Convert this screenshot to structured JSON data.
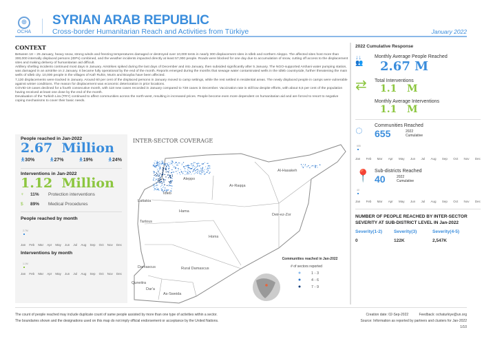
{
  "header": {
    "org": "OCHA",
    "title": "SYRIAN ARAB REPUBLIC",
    "subtitle": "Cross-border Humanitarian Reach and Activities from Türkiye",
    "date": "January 2022"
  },
  "context": {
    "heading": "CONTEXT",
    "paragraphs": [
      "Between 18 – 25 January, heavy snow, strong winds and freezing temperatures damaged or destroyed over 10,000 tents in nearly 300 displacement sites in Idleb and northern Aleppo. The affected sites host more than 300,000 internally displaced persons (IDPs) combined, and the weather incidents impacted directly at least 57,000 people. Roads were blocked for one day due to accumulation of snow, cutting off access to the displacement sites and making delivery of humanitarian aid difficult.",
      "Artillery shelling incidents continued most days in January. Airstrikes spiked during the last days of December and into January, then subsided significantly after 5 January. The NGO-supported Arshani water pumping station, was damaged in an airstrike on 2 January. It became fully operational by the end of the month. Reports emerged during the months that sewage water contaminated wells in the Idleb countryside, further threatening the main wells of Idleb city. 10,000 people in the villages of Kafr Ruhin, Murin and Boayba have been affected.",
      "7,130 displacements were tracked in January. Around 60 per cent of the displaced persons in January moved to camp settings, while the rest settled in residential areas. The newly displaced people in camps were vulnerable against winter conditions. The reason for displacement was economic deterioration in prior locations.",
      "COVID-19 cases declined for a fourth consecutive month, with 118 new cases recorded in January compared to 728 cases in December. Vaccination rate is still low despite efforts, with about 6,5 per cent of the population having received at least one dose by the end of the month.",
      "Devaluation of the Turkish Lira (TRY) continued to affect communities across the north-west, resulting in increased prices. People become even more dependent on humanitarian aid and are forced to resort to negative coping mechanisms to cover their basic needs."
    ]
  },
  "left": {
    "people_heading": "People reached in Jan-2022",
    "people_value": "2.67",
    "people_unit": "Million",
    "demographics": [
      "30%",
      "27%",
      "19%",
      "24%"
    ],
    "interventions_heading": "Interventions in Jan-2022",
    "interventions_value": "1.12",
    "interventions_unit": "Million",
    "breakdown": [
      {
        "pct": "11%",
        "label": "Protection interventions"
      },
      {
        "pct": "89%",
        "label": "Medical Procedures"
      }
    ],
    "people_month_heading": "People reached by month",
    "people_month_label": "2.7M",
    "interventions_month_heading": "Interventions by month",
    "interventions_month_label": "1.1M"
  },
  "months": [
    "Jan",
    "Feb",
    "Mar",
    "Apr",
    "May",
    "Jun",
    "Jul",
    "Aug",
    "Sep",
    "Oct",
    "Nov",
    "Dec"
  ],
  "map": {
    "title": "INTER-SECTOR COVERAGE",
    "places": [
      "Al-Hasakeh",
      "Aleppo",
      "Ar-Raqqa",
      "Idleb",
      "Lattakia",
      "Hama",
      "Deir-ez-Zor",
      "Tartous",
      "Homs",
      "Damascus",
      "Rural Damascus",
      "Quneitra",
      "Dar'a",
      "As-Sweida"
    ],
    "legend": {
      "title": "Communities reached in Jan-2022",
      "subtitle": "# of sectors reported",
      "items": [
        {
          "label": "1 - 3",
          "color": "#8cbcee"
        },
        {
          "label": "4 - 6",
          "color": "#2f74c8"
        },
        {
          "label": "7 - 9",
          "color": "#0d3a78"
        }
      ]
    }
  },
  "right": {
    "heading": "2022 Cumulative Response",
    "avg_people_label": "Monthly Average People Reached",
    "avg_people_value": "2.67 M",
    "total_int_label": "Total Interventions",
    "total_int_value": "1.1   M",
    "avg_int_label": "Monthly Average Interventions",
    "avg_int_value": "1.1   M",
    "communities_label": "Communities Reached",
    "communities_value": "655",
    "communities_note": "2022 Cumulative",
    "communities_chart_label": "655",
    "subdistricts_label": "Sub-districts Reached",
    "subdistricts_value": "40",
    "subdistricts_note": "2022 Cumulative",
    "subdistricts_chart_label": "40",
    "severity_heading": "NUMBER OF PEOPLE REACHED BY INTER-SECTOR SEVERITY AT SUB-DISTRICT LEVEL IN  Jan-2022",
    "severity": [
      {
        "label": "Severity(1-2)",
        "value": "0"
      },
      {
        "label": "Severity(3)",
        "value": "122K"
      },
      {
        "label": "Severity(4-5)",
        "value": "2,547K"
      }
    ]
  },
  "footer": {
    "note1": "The count of people reached may include duplicate count of same people assisted by more than one type of activities within a sector.",
    "note2": "The boundaries shown and the designations used on this map do not imply official endorsement or acceptance by the United Nations.",
    "created": "Creation date: 02-Sep-2022",
    "feedback": "Feedback: ochaturkiye@un.org",
    "source": "Source:  Information as reported by partners and clusters for Jan-2022",
    "page": "1/10"
  },
  "colors": {
    "blue": "#3a8ddc",
    "green": "#8cc63f"
  }
}
